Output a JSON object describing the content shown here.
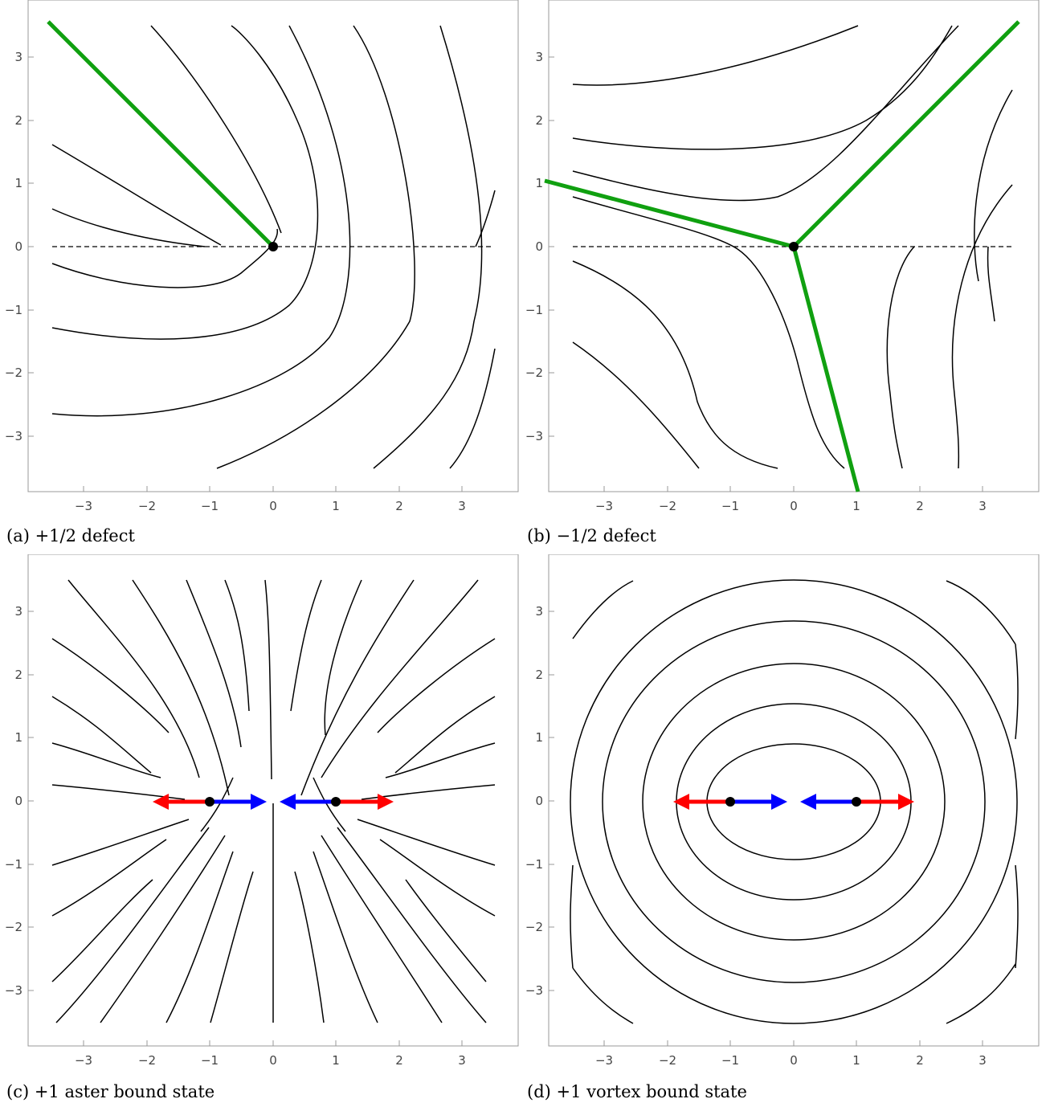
{
  "panels": [
    {
      "id": "a",
      "caption": "(a) +1/2 defect",
      "tick_labels_x": [
        "−3",
        "−2",
        "−1",
        "0",
        "1",
        "2",
        "3"
      ],
      "tick_labels_y": [
        "3",
        "2",
        "1",
        "0",
        "−1",
        "−2",
        "−3"
      ]
    },
    {
      "id": "b",
      "caption": "(b) −1/2 defect",
      "tick_labels_x": [
        "−3",
        "−2",
        "−1",
        "0",
        "1",
        "2",
        "3"
      ],
      "tick_labels_y": [
        "3",
        "2",
        "1",
        "0",
        "−1",
        "−2",
        "−3"
      ]
    },
    {
      "id": "c",
      "caption": "(c) +1 aster bound state",
      "tick_labels_x": [
        "−3",
        "−2",
        "−1",
        "0",
        "1",
        "2",
        "3"
      ],
      "tick_labels_y": [
        "3",
        "2",
        "1",
        "0",
        "−1",
        "−2",
        "−3"
      ]
    },
    {
      "id": "d",
      "caption": "(d) +1 vortex bound state",
      "tick_labels_x": [
        "−3",
        "−2",
        "−1",
        "0",
        "1",
        "2",
        "3"
      ],
      "tick_labels_y": [
        "3",
        "2",
        "1",
        "0",
        "−1",
        "−2",
        "−3"
      ]
    }
  ],
  "colors": {
    "streamline": "#000000",
    "branch_line": "#10a010",
    "arrow_outer": "#ff0000",
    "arrow_inner": "#0000ff",
    "defect_point": "#000000",
    "frame": "#999999"
  },
  "icons": {
    "defect": "filled-circle",
    "direction": "arrow"
  }
}
